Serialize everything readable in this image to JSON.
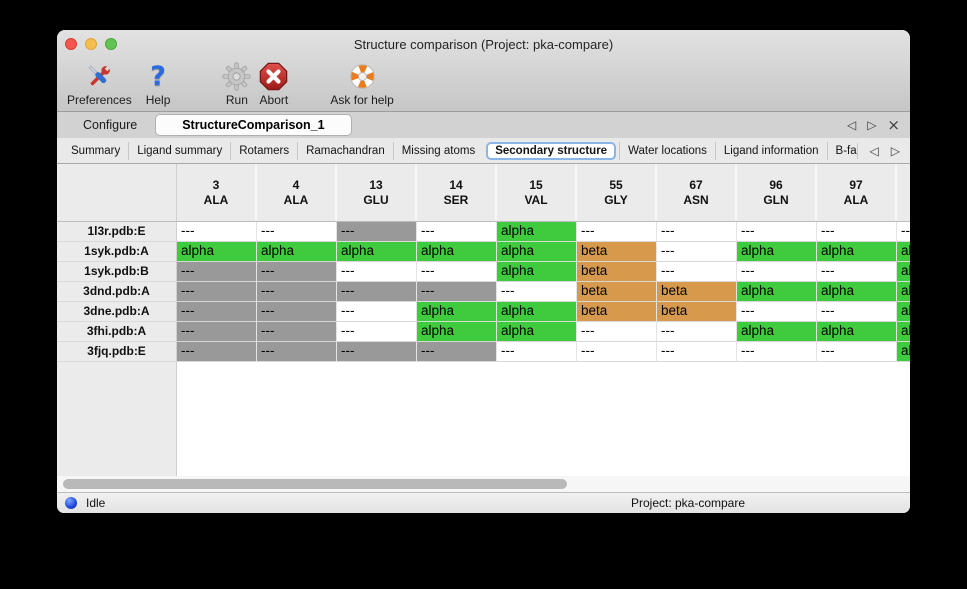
{
  "window": {
    "title": "Structure comparison (Project: pka-compare)"
  },
  "toolbar": {
    "items": [
      {
        "label": "Preferences",
        "icon": "tools-icon"
      },
      {
        "label": "Help",
        "icon": "question-mark-icon"
      },
      {
        "label": "Run",
        "icon": "gear-icon"
      },
      {
        "label": "Abort",
        "icon": "stop-x-icon"
      },
      {
        "label": "Ask for help",
        "icon": "lifebuoy-icon"
      }
    ]
  },
  "tabs": {
    "configure": "Configure",
    "active": "StructureComparison_1"
  },
  "subtabs": {
    "items": [
      "Summary",
      "Ligand summary",
      "Rotamers",
      "Ramachandran",
      "Missing atoms",
      "Secondary structure",
      "Water locations",
      "Ligand information",
      "B-factors"
    ],
    "selected": "Secondary structure"
  },
  "icons": {
    "back_glyph": "◁",
    "forward_glyph": "▷",
    "close_glyph": "×"
  },
  "colors": {
    "alpha": "#3ecb3e",
    "beta": "#d79a4d",
    "missing_shaded": "#999999",
    "missing_plain": "#ffffff"
  },
  "table": {
    "columns": [
      {
        "number": "3",
        "residue": "ALA"
      },
      {
        "number": "4",
        "residue": "ALA"
      },
      {
        "number": "13",
        "residue": "GLU"
      },
      {
        "number": "14",
        "residue": "SER"
      },
      {
        "number": "15",
        "residue": "VAL"
      },
      {
        "number": "55",
        "residue": "GLY"
      },
      {
        "number": "67",
        "residue": "ASN"
      },
      {
        "number": "96",
        "residue": "GLN"
      },
      {
        "number": "97",
        "residue": "ALA"
      },
      {
        "number": "",
        "residue": ""
      }
    ],
    "rows": [
      {
        "label": "1l3r.pdb:E",
        "cells": [
          {
            "text": "---",
            "bg": "missing_plain"
          },
          {
            "text": "---",
            "bg": "missing_plain"
          },
          {
            "text": "---",
            "bg": "missing_shaded"
          },
          {
            "text": "---",
            "bg": "missing_plain"
          },
          {
            "text": "alpha",
            "bg": "alpha"
          },
          {
            "text": "---",
            "bg": "missing_plain"
          },
          {
            "text": "---",
            "bg": "missing_plain"
          },
          {
            "text": "---",
            "bg": "missing_plain"
          },
          {
            "text": "---",
            "bg": "missing_plain"
          },
          {
            "text": "---",
            "bg": "missing_plain"
          }
        ]
      },
      {
        "label": "1syk.pdb:A",
        "cells": [
          {
            "text": "alpha",
            "bg": "alpha"
          },
          {
            "text": "alpha",
            "bg": "alpha"
          },
          {
            "text": "alpha",
            "bg": "alpha"
          },
          {
            "text": "alpha",
            "bg": "alpha"
          },
          {
            "text": "alpha",
            "bg": "alpha"
          },
          {
            "text": "beta",
            "bg": "beta"
          },
          {
            "text": "---",
            "bg": "missing_plain"
          },
          {
            "text": "alpha",
            "bg": "alpha"
          },
          {
            "text": "alpha",
            "bg": "alpha"
          },
          {
            "text": "alpha",
            "bg": "alpha"
          }
        ]
      },
      {
        "label": "1syk.pdb:B",
        "cells": [
          {
            "text": "---",
            "bg": "missing_shaded"
          },
          {
            "text": "---",
            "bg": "missing_shaded"
          },
          {
            "text": "---",
            "bg": "missing_plain"
          },
          {
            "text": "---",
            "bg": "missing_plain"
          },
          {
            "text": "alpha",
            "bg": "alpha"
          },
          {
            "text": "beta",
            "bg": "beta"
          },
          {
            "text": "---",
            "bg": "missing_plain"
          },
          {
            "text": "---",
            "bg": "missing_plain"
          },
          {
            "text": "---",
            "bg": "missing_plain"
          },
          {
            "text": "alpha",
            "bg": "alpha"
          }
        ]
      },
      {
        "label": "3dnd.pdb:A",
        "cells": [
          {
            "text": "---",
            "bg": "missing_shaded"
          },
          {
            "text": "---",
            "bg": "missing_shaded"
          },
          {
            "text": "---",
            "bg": "missing_shaded"
          },
          {
            "text": "---",
            "bg": "missing_shaded"
          },
          {
            "text": "---",
            "bg": "missing_plain"
          },
          {
            "text": "beta",
            "bg": "beta"
          },
          {
            "text": "beta",
            "bg": "beta"
          },
          {
            "text": "alpha",
            "bg": "alpha"
          },
          {
            "text": "alpha",
            "bg": "alpha"
          },
          {
            "text": "alpha",
            "bg": "alpha"
          }
        ]
      },
      {
        "label": "3dne.pdb:A",
        "cells": [
          {
            "text": "---",
            "bg": "missing_shaded"
          },
          {
            "text": "---",
            "bg": "missing_shaded"
          },
          {
            "text": "---",
            "bg": "missing_plain"
          },
          {
            "text": "alpha",
            "bg": "alpha"
          },
          {
            "text": "alpha",
            "bg": "alpha"
          },
          {
            "text": "beta",
            "bg": "beta"
          },
          {
            "text": "beta",
            "bg": "beta"
          },
          {
            "text": "---",
            "bg": "missing_plain"
          },
          {
            "text": "---",
            "bg": "missing_plain"
          },
          {
            "text": "alpha",
            "bg": "alpha"
          }
        ]
      },
      {
        "label": "3fhi.pdb:A",
        "cells": [
          {
            "text": "---",
            "bg": "missing_shaded"
          },
          {
            "text": "---",
            "bg": "missing_shaded"
          },
          {
            "text": "---",
            "bg": "missing_plain"
          },
          {
            "text": "alpha",
            "bg": "alpha"
          },
          {
            "text": "alpha",
            "bg": "alpha"
          },
          {
            "text": "---",
            "bg": "missing_plain"
          },
          {
            "text": "---",
            "bg": "missing_plain"
          },
          {
            "text": "alpha",
            "bg": "alpha"
          },
          {
            "text": "alpha",
            "bg": "alpha"
          },
          {
            "text": "alpha",
            "bg": "alpha"
          }
        ]
      },
      {
        "label": "3fjq.pdb:E",
        "cells": [
          {
            "text": "---",
            "bg": "missing_shaded"
          },
          {
            "text": "---",
            "bg": "missing_shaded"
          },
          {
            "text": "---",
            "bg": "missing_shaded"
          },
          {
            "text": "---",
            "bg": "missing_shaded"
          },
          {
            "text": "---",
            "bg": "missing_plain"
          },
          {
            "text": "---",
            "bg": "missing_plain"
          },
          {
            "text": "---",
            "bg": "missing_plain"
          },
          {
            "text": "---",
            "bg": "missing_plain"
          },
          {
            "text": "---",
            "bg": "missing_plain"
          },
          {
            "text": "alpha",
            "bg": "alpha"
          }
        ]
      }
    ]
  },
  "statusbar": {
    "status": "Idle",
    "project": "Project: pka-compare"
  }
}
